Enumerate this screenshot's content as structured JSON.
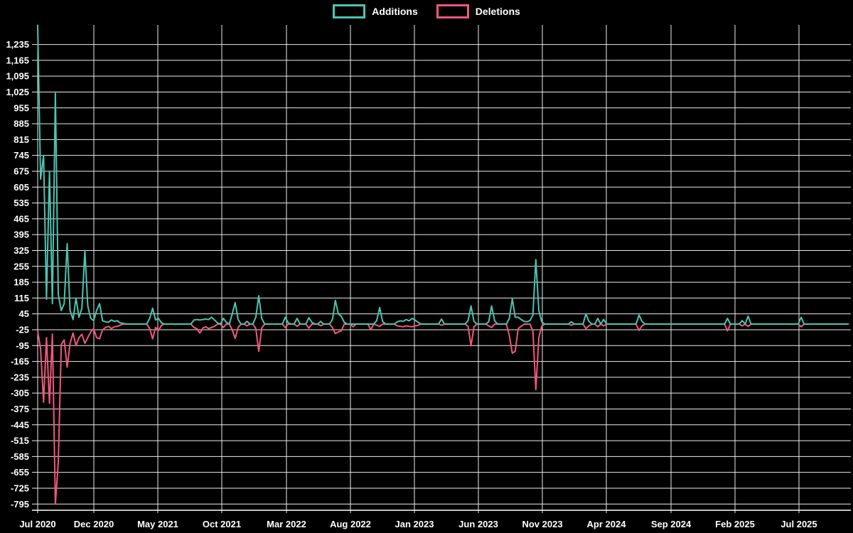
{
  "colors": {
    "background": "#000000",
    "grid": "#ececec",
    "axis_text": "#ffffff",
    "additions": "#4dc4b1",
    "deletions": "#f2577d"
  },
  "chart_data": {
    "type": "line",
    "title": "",
    "xlabel": "",
    "ylabel": "",
    "legend_position": "top-center",
    "grid": true,
    "x_tick_labels": [
      "Jul 2020",
      "Dec 2020",
      "May 2021",
      "Oct 2021",
      "Mar 2022",
      "Aug 2022",
      "Jan 2023",
      "Jun 2023",
      "Nov 2023",
      "Apr 2024",
      "Sep 2024",
      "Feb 2025",
      "Jul 2025"
    ],
    "y_axis": {
      "max": 1235,
      "min": -795,
      "step": 70
    },
    "x_unit": "week",
    "series": [
      {
        "name": "Additions",
        "color": "#4dc4b1",
        "values": [
          1320,
          640,
          745,
          110,
          675,
          90,
          1020,
          130,
          60,
          90,
          355,
          60,
          20,
          115,
          30,
          70,
          325,
          80,
          25,
          15,
          60,
          90,
          15,
          10,
          8,
          18,
          12,
          15,
          5,
          3,
          0,
          0,
          0,
          0,
          0,
          0,
          0,
          0,
          25,
          70,
          18,
          25,
          5,
          0,
          0,
          0,
          0,
          0,
          0,
          0,
          0,
          0,
          0,
          18,
          20,
          18,
          20,
          22,
          20,
          30,
          18,
          5,
          0,
          25,
          8,
          0,
          45,
          95,
          20,
          0,
          0,
          12,
          0,
          0,
          30,
          125,
          25,
          0,
          0,
          0,
          0,
          0,
          0,
          0,
          30,
          5,
          0,
          0,
          25,
          0,
          0,
          0,
          28,
          8,
          0,
          0,
          12,
          0,
          0,
          0,
          20,
          105,
          45,
          35,
          8,
          0,
          0,
          0,
          0,
          0,
          0,
          0,
          0,
          0,
          0,
          15,
          73,
          12,
          0,
          0,
          0,
          0,
          10,
          14,
          12,
          20,
          14,
          25,
          18,
          8,
          0,
          0,
          0,
          0,
          0,
          0,
          0,
          22,
          0,
          0,
          0,
          0,
          0,
          0,
          0,
          0,
          15,
          80,
          12,
          0,
          0,
          0,
          0,
          10,
          80,
          15,
          0,
          0,
          0,
          0,
          25,
          111,
          30,
          30,
          20,
          12,
          10,
          15,
          40,
          285,
          60,
          10,
          0,
          0,
          0,
          0,
          0,
          0,
          0,
          0,
          0,
          10,
          0,
          0,
          0,
          0,
          45,
          12,
          0,
          0,
          25,
          0,
          20,
          0,
          0,
          0,
          0,
          0,
          0,
          0,
          0,
          0,
          0,
          0,
          40,
          12,
          0,
          0,
          0,
          0,
          0,
          0,
          0,
          0,
          0,
          0,
          0,
          0,
          0,
          0,
          0,
          0,
          0,
          0,
          0,
          0,
          0,
          0,
          0,
          0,
          0,
          0,
          0,
          0,
          25,
          0,
          0,
          0,
          0,
          15,
          0,
          35,
          0,
          0,
          0,
          0,
          0,
          0,
          0,
          0,
          0,
          0,
          0,
          0,
          0,
          0,
          0,
          0,
          0,
          30,
          0,
          0,
          0,
          0,
          0,
          0,
          0,
          0,
          0,
          0,
          0,
          0,
          0,
          0,
          0,
          0
        ]
      },
      {
        "name": "Deletions",
        "color": "#f2577d",
        "values": [
          -30,
          -110,
          -345,
          -60,
          -350,
          -45,
          -795,
          -610,
          -90,
          -70,
          -190,
          -85,
          -40,
          -95,
          -60,
          -45,
          -85,
          -60,
          -35,
          -20,
          -60,
          -65,
          -25,
          -15,
          -10,
          -20,
          -12,
          -10,
          -5,
          0,
          0,
          0,
          0,
          0,
          0,
          0,
          0,
          0,
          -20,
          -65,
          -15,
          -28,
          -5,
          0,
          0,
          0,
          0,
          0,
          0,
          0,
          0,
          0,
          0,
          -15,
          -20,
          -40,
          -18,
          -12,
          -20,
          -15,
          -10,
          0,
          0,
          -15,
          0,
          0,
          -25,
          -63,
          -15,
          0,
          0,
          -8,
          0,
          0,
          -20,
          -120,
          -18,
          0,
          0,
          0,
          0,
          0,
          0,
          0,
          -15,
          0,
          0,
          0,
          -10,
          0,
          0,
          0,
          -18,
          0,
          0,
          0,
          -8,
          0,
          0,
          0,
          -15,
          -42,
          -35,
          -30,
          0,
          0,
          0,
          -12,
          0,
          0,
          0,
          0,
          0,
          -25,
          0,
          -5,
          -10,
          0,
          0,
          0,
          0,
          0,
          -8,
          -10,
          -12,
          -8,
          -10,
          -12,
          -8,
          -6,
          0,
          0,
          0,
          0,
          0,
          0,
          0,
          -5,
          0,
          0,
          0,
          0,
          0,
          0,
          0,
          0,
          -10,
          -96,
          -12,
          0,
          0,
          0,
          0,
          -8,
          -15,
          0,
          0,
          0,
          0,
          0,
          -50,
          -129,
          -120,
          -20,
          -10,
          0,
          0,
          0,
          -30,
          -290,
          -60,
          -10,
          0,
          0,
          0,
          0,
          0,
          0,
          0,
          0,
          0,
          -5,
          0,
          0,
          0,
          0,
          -20,
          -8,
          0,
          0,
          -12,
          0,
          -8,
          0,
          0,
          0,
          0,
          0,
          0,
          0,
          0,
          0,
          0,
          0,
          -28,
          -8,
          0,
          0,
          0,
          0,
          0,
          0,
          0,
          0,
          0,
          0,
          0,
          0,
          0,
          0,
          0,
          0,
          0,
          0,
          0,
          0,
          0,
          0,
          0,
          0,
          0,
          0,
          0,
          0,
          -30,
          0,
          0,
          0,
          0,
          -8,
          0,
          -10,
          0,
          0,
          0,
          0,
          0,
          0,
          0,
          0,
          0,
          0,
          0,
          0,
          0,
          0,
          0,
          0,
          0,
          -12,
          0,
          0,
          0,
          0,
          0,
          0,
          0,
          0,
          0,
          0,
          0,
          0,
          0,
          0,
          0,
          0
        ]
      }
    ]
  }
}
